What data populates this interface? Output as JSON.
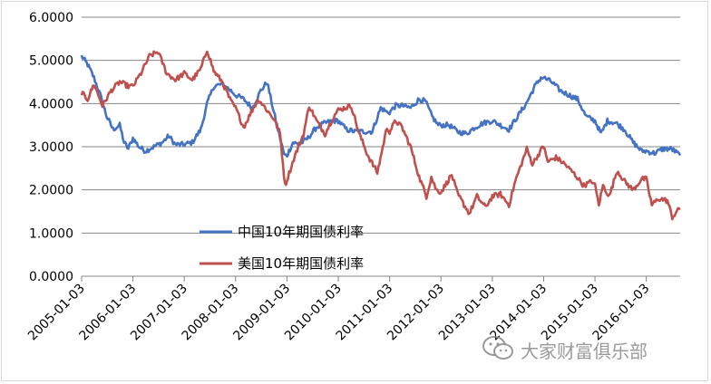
{
  "chart_data": {
    "type": "line",
    "title": "",
    "xlabel": "",
    "ylabel": "",
    "ylim": [
      0,
      6
    ],
    "yticks": [
      "0.0000",
      "1.0000",
      "2.0000",
      "3.0000",
      "4.0000",
      "5.0000",
      "6.0000"
    ],
    "xticks": [
      "2005-01-03",
      "2006-01-03",
      "2007-01-03",
      "2008-01-03",
      "2009-01-03",
      "2010-01-03",
      "2011-01-03",
      "2012-01-03",
      "2013-01-03",
      "2014-01-03",
      "2015-01-03",
      "2016-01-03"
    ],
    "x_range": [
      "2005-01-03",
      "2016-08-31"
    ],
    "grid": "horizontal",
    "legend_position": "center-left",
    "series": [
      {
        "name": "中国10年期国债利率",
        "color": "#4472c4",
        "points": [
          [
            "2005-01-03",
            5.1
          ],
          [
            "2005-02-15",
            4.9
          ],
          [
            "2005-04-01",
            4.6
          ],
          [
            "2005-05-15",
            4.2
          ],
          [
            "2005-07-01",
            3.7
          ],
          [
            "2005-08-15",
            3.4
          ],
          [
            "2005-10-01",
            3.5
          ],
          [
            "2005-11-01",
            3.1
          ],
          [
            "2005-12-01",
            2.95
          ],
          [
            "2006-01-03",
            3.2
          ],
          [
            "2006-02-15",
            3.0
          ],
          [
            "2006-04-01",
            2.9
          ],
          [
            "2006-06-01",
            3.0
          ],
          [
            "2006-08-01",
            3.1
          ],
          [
            "2006-09-15",
            3.25
          ],
          [
            "2006-11-01",
            3.05
          ],
          [
            "2007-01-03",
            3.05
          ],
          [
            "2007-03-01",
            3.1
          ],
          [
            "2007-05-01",
            3.4
          ],
          [
            "2007-06-15",
            4.0
          ],
          [
            "2007-08-01",
            4.4
          ],
          [
            "2007-10-01",
            4.45
          ],
          [
            "2007-12-01",
            4.3
          ],
          [
            "2008-01-03",
            4.2
          ],
          [
            "2008-03-01",
            4.1
          ],
          [
            "2008-05-01",
            3.9
          ],
          [
            "2008-07-01",
            4.3
          ],
          [
            "2008-08-15",
            4.5
          ],
          [
            "2008-10-01",
            3.8
          ],
          [
            "2008-11-15",
            3.2
          ],
          [
            "2008-12-15",
            2.8
          ],
          [
            "2009-01-03",
            2.8
          ],
          [
            "2009-02-15",
            3.1
          ],
          [
            "2009-04-01",
            3.05
          ],
          [
            "2009-06-01",
            3.2
          ],
          [
            "2009-08-01",
            3.45
          ],
          [
            "2009-10-01",
            3.55
          ],
          [
            "2009-12-01",
            3.6
          ],
          [
            "2010-01-03",
            3.6
          ],
          [
            "2010-03-01",
            3.4
          ],
          [
            "2010-05-01",
            3.35
          ],
          [
            "2010-07-01",
            3.35
          ],
          [
            "2010-09-01",
            3.35
          ],
          [
            "2010-11-01",
            3.9
          ],
          [
            "2010-12-15",
            3.8
          ],
          [
            "2011-01-03",
            3.8
          ],
          [
            "2011-02-15",
            3.95
          ],
          [
            "2011-04-01",
            3.95
          ],
          [
            "2011-06-01",
            3.9
          ],
          [
            "2011-08-01",
            4.1
          ],
          [
            "2011-09-15",
            4.05
          ],
          [
            "2011-11-01",
            3.7
          ],
          [
            "2011-12-15",
            3.5
          ],
          [
            "2012-01-03",
            3.5
          ],
          [
            "2012-03-01",
            3.5
          ],
          [
            "2012-05-01",
            3.35
          ],
          [
            "2012-07-01",
            3.3
          ],
          [
            "2012-09-01",
            3.45
          ],
          [
            "2012-11-01",
            3.55
          ],
          [
            "2013-01-03",
            3.6
          ],
          [
            "2013-03-01",
            3.5
          ],
          [
            "2013-05-01",
            3.4
          ],
          [
            "2013-07-01",
            3.7
          ],
          [
            "2013-09-01",
            4.0
          ],
          [
            "2013-11-01",
            4.4
          ],
          [
            "2013-12-15",
            4.6
          ],
          [
            "2014-01-03",
            4.6
          ],
          [
            "2014-03-01",
            4.5
          ],
          [
            "2014-05-01",
            4.3
          ],
          [
            "2014-07-01",
            4.2
          ],
          [
            "2014-09-01",
            4.1
          ],
          [
            "2014-11-01",
            3.7
          ],
          [
            "2015-01-03",
            3.6
          ],
          [
            "2015-02-15",
            3.3
          ],
          [
            "2015-04-01",
            3.6
          ],
          [
            "2015-06-01",
            3.55
          ],
          [
            "2015-08-01",
            3.4
          ],
          [
            "2015-10-01",
            3.1
          ],
          [
            "2015-12-01",
            2.9
          ],
          [
            "2016-01-03",
            2.9
          ],
          [
            "2016-03-01",
            2.85
          ],
          [
            "2016-05-01",
            2.95
          ],
          [
            "2016-07-01",
            2.95
          ],
          [
            "2016-08-31",
            2.8
          ]
        ]
      },
      {
        "name": "美国10年期国债利率",
        "color": "#c0504d",
        "points": [
          [
            "2005-01-03",
            4.25
          ],
          [
            "2005-02-15",
            4.1
          ],
          [
            "2005-04-01",
            4.45
          ],
          [
            "2005-06-01",
            3.95
          ],
          [
            "2005-08-01",
            4.3
          ],
          [
            "2005-10-01",
            4.5
          ],
          [
            "2005-12-01",
            4.4
          ],
          [
            "2006-01-03",
            4.4
          ],
          [
            "2006-03-01",
            4.7
          ],
          [
            "2006-05-01",
            5.1
          ],
          [
            "2006-07-01",
            5.2
          ],
          [
            "2006-09-01",
            4.7
          ],
          [
            "2006-11-01",
            4.55
          ],
          [
            "2007-01-03",
            4.7
          ],
          [
            "2007-03-01",
            4.55
          ],
          [
            "2007-05-01",
            4.8
          ],
          [
            "2007-06-15",
            5.25
          ],
          [
            "2007-08-01",
            4.75
          ],
          [
            "2007-10-01",
            4.5
          ],
          [
            "2007-12-01",
            4.05
          ],
          [
            "2008-01-03",
            3.9
          ],
          [
            "2008-03-01",
            3.45
          ],
          [
            "2008-05-01",
            3.85
          ],
          [
            "2008-06-15",
            4.1
          ],
          [
            "2008-08-01",
            3.9
          ],
          [
            "2008-10-01",
            3.65
          ],
          [
            "2008-11-15",
            3.3
          ],
          [
            "2008-12-20",
            2.1
          ],
          [
            "2009-01-10",
            2.3
          ],
          [
            "2009-03-01",
            2.8
          ],
          [
            "2009-05-01",
            3.3
          ],
          [
            "2009-06-10",
            3.95
          ],
          [
            "2009-08-01",
            3.6
          ],
          [
            "2009-10-01",
            3.3
          ],
          [
            "2009-12-01",
            3.7
          ],
          [
            "2010-01-03",
            3.85
          ],
          [
            "2010-04-05",
            3.95
          ],
          [
            "2010-06-01",
            3.3
          ],
          [
            "2010-08-01",
            2.8
          ],
          [
            "2010-10-08",
            2.4
          ],
          [
            "2010-12-15",
            3.45
          ],
          [
            "2011-01-03",
            3.35
          ],
          [
            "2011-02-15",
            3.6
          ],
          [
            "2011-04-01",
            3.45
          ],
          [
            "2011-06-01",
            3.0
          ],
          [
            "2011-08-01",
            2.3
          ],
          [
            "2011-09-22",
            1.85
          ],
          [
            "2011-10-27",
            2.3
          ],
          [
            "2011-12-01",
            2.0
          ],
          [
            "2012-01-03",
            1.95
          ],
          [
            "2012-03-20",
            2.35
          ],
          [
            "2012-05-01",
            1.9
          ],
          [
            "2012-07-24",
            1.45
          ],
          [
            "2012-09-15",
            1.85
          ],
          [
            "2012-11-15",
            1.6
          ],
          [
            "2013-01-03",
            1.85
          ],
          [
            "2013-03-01",
            1.9
          ],
          [
            "2013-05-01",
            1.65
          ],
          [
            "2013-06-15",
            2.2
          ],
          [
            "2013-09-05",
            2.95
          ],
          [
            "2013-10-15",
            2.6
          ],
          [
            "2013-12-31",
            3.0
          ],
          [
            "2014-01-03",
            3.0
          ],
          [
            "2014-02-01",
            2.65
          ],
          [
            "2014-04-01",
            2.75
          ],
          [
            "2014-06-01",
            2.6
          ],
          [
            "2014-08-15",
            2.35
          ],
          [
            "2014-10-15",
            2.1
          ],
          [
            "2014-12-15",
            2.2
          ],
          [
            "2015-01-03",
            2.1
          ],
          [
            "2015-01-30",
            1.65
          ],
          [
            "2015-03-01",
            2.1
          ],
          [
            "2015-04-15",
            1.85
          ],
          [
            "2015-06-10",
            2.45
          ],
          [
            "2015-08-01",
            2.2
          ],
          [
            "2015-10-01",
            2.0
          ],
          [
            "2015-12-01",
            2.25
          ],
          [
            "2016-01-03",
            2.25
          ],
          [
            "2016-02-11",
            1.65
          ],
          [
            "2016-04-01",
            1.8
          ],
          [
            "2016-06-01",
            1.75
          ],
          [
            "2016-07-06",
            1.37
          ],
          [
            "2016-08-31",
            1.58
          ]
        ]
      }
    ]
  },
  "watermark": {
    "text": "大家财富俱乐部",
    "icon": "wechat-icon"
  }
}
